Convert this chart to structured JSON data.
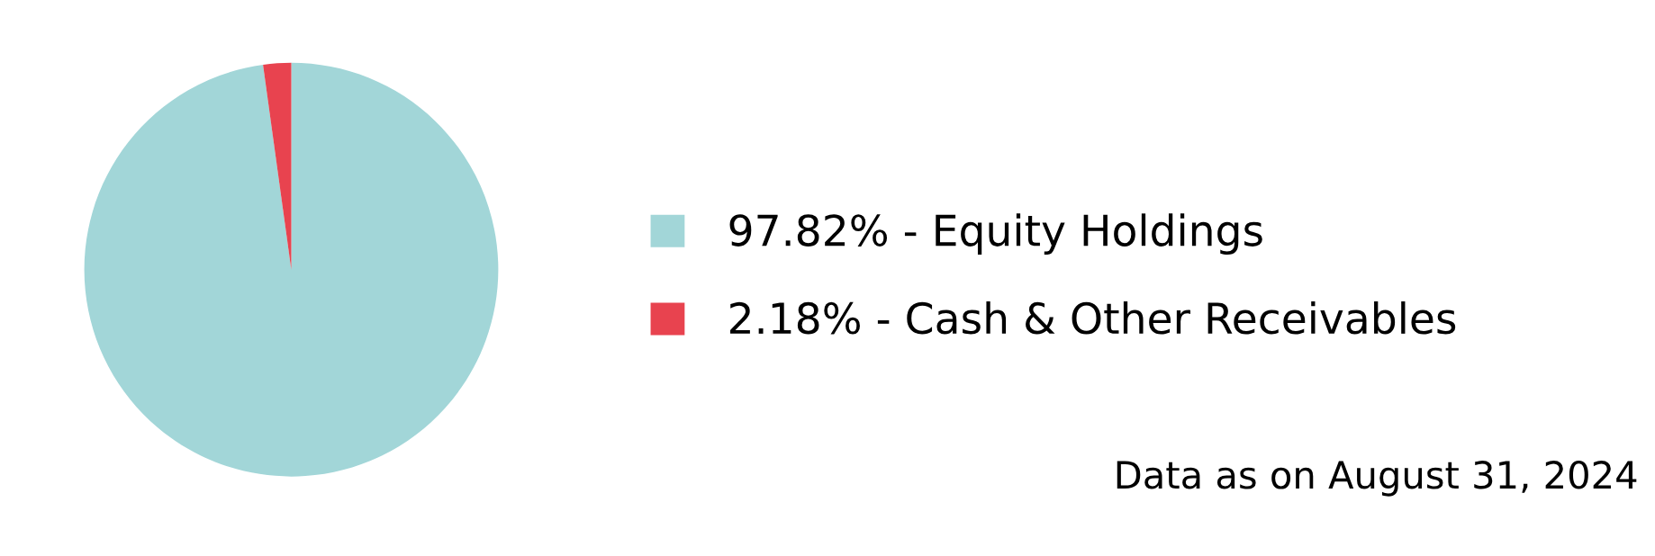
{
  "chart_data": {
    "type": "pie",
    "categories": [
      "97.82% - Equity Holdings",
      "2.18% - Cash & Other Receivables"
    ],
    "values": [
      97.82,
      2.18
    ],
    "colors": [
      "#a2d6d8",
      "#e8434f"
    ],
    "legend": "right",
    "annotations": [
      "Data as on August 31, 2024"
    ]
  }
}
